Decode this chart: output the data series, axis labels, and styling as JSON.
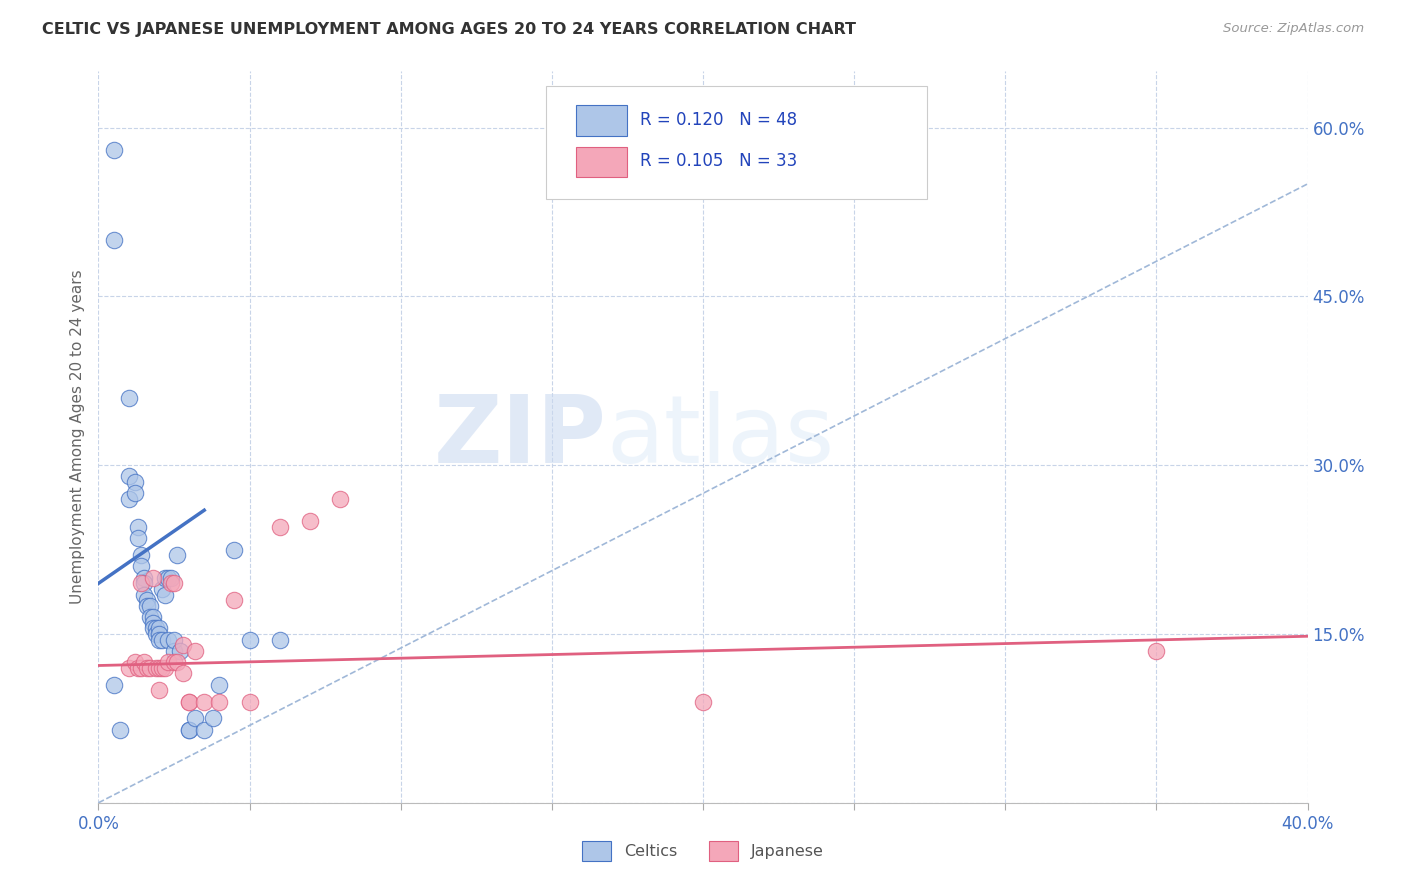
{
  "title": "CELTIC VS JAPANESE UNEMPLOYMENT AMONG AGES 20 TO 24 YEARS CORRELATION CHART",
  "source": "Source: ZipAtlas.com",
  "ylabel": "Unemployment Among Ages 20 to 24 years",
  "xlim": [
    0.0,
    0.4
  ],
  "ylim": [
    0.0,
    0.65
  ],
  "xticks": [
    0.0,
    0.05,
    0.1,
    0.15,
    0.2,
    0.25,
    0.3,
    0.35,
    0.4
  ],
  "right_yticks": [
    0.0,
    0.15,
    0.3,
    0.45,
    0.6
  ],
  "right_yticklabels": [
    "",
    "15.0%",
    "30.0%",
    "45.0%",
    "60.0%"
  ],
  "celtics_r": "0.120",
  "celtics_n": "48",
  "japanese_r": "0.105",
  "japanese_n": "33",
  "celtics_color": "#aec6e8",
  "japanese_color": "#f4a7b9",
  "celtics_line_color": "#4472c4",
  "japanese_line_color": "#e06080",
  "dashed_line_color": "#a0b8d8",
  "background_color": "#ffffff",
  "grid_color": "#c8d4e8",
  "watermark_zip": "ZIP",
  "watermark_atlas": "atlas",
  "celtics_x": [
    0.005,
    0.005,
    0.01,
    0.01,
    0.01,
    0.012,
    0.012,
    0.013,
    0.013,
    0.014,
    0.014,
    0.015,
    0.015,
    0.015,
    0.016,
    0.016,
    0.017,
    0.017,
    0.018,
    0.018,
    0.018,
    0.019,
    0.019,
    0.02,
    0.02,
    0.02,
    0.021,
    0.021,
    0.022,
    0.022,
    0.023,
    0.023,
    0.024,
    0.025,
    0.025,
    0.026,
    0.027,
    0.03,
    0.03,
    0.032,
    0.035,
    0.038,
    0.04,
    0.045,
    0.05,
    0.06,
    0.005,
    0.007
  ],
  "celtics_y": [
    0.58,
    0.5,
    0.36,
    0.29,
    0.27,
    0.285,
    0.275,
    0.245,
    0.235,
    0.22,
    0.21,
    0.2,
    0.195,
    0.185,
    0.18,
    0.175,
    0.175,
    0.165,
    0.165,
    0.16,
    0.155,
    0.155,
    0.15,
    0.155,
    0.15,
    0.145,
    0.145,
    0.19,
    0.185,
    0.2,
    0.145,
    0.2,
    0.2,
    0.135,
    0.145,
    0.22,
    0.135,
    0.065,
    0.065,
    0.075,
    0.065,
    0.075,
    0.105,
    0.225,
    0.145,
    0.145,
    0.105,
    0.065
  ],
  "japanese_x": [
    0.01,
    0.012,
    0.013,
    0.014,
    0.014,
    0.015,
    0.016,
    0.017,
    0.018,
    0.019,
    0.02,
    0.02,
    0.021,
    0.022,
    0.023,
    0.024,
    0.025,
    0.025,
    0.026,
    0.028,
    0.028,
    0.03,
    0.03,
    0.032,
    0.035,
    0.04,
    0.045,
    0.05,
    0.06,
    0.07,
    0.08,
    0.2,
    0.35
  ],
  "japanese_y": [
    0.12,
    0.125,
    0.12,
    0.12,
    0.195,
    0.125,
    0.12,
    0.12,
    0.2,
    0.12,
    0.12,
    0.1,
    0.12,
    0.12,
    0.125,
    0.195,
    0.195,
    0.125,
    0.125,
    0.115,
    0.14,
    0.09,
    0.09,
    0.135,
    0.09,
    0.09,
    0.18,
    0.09,
    0.245,
    0.25,
    0.27,
    0.09,
    0.135
  ],
  "celtics_trend_x0": 0.0,
  "celtics_trend_y0": 0.195,
  "celtics_trend_x1": 0.035,
  "celtics_trend_y1": 0.26,
  "dashed_trend_x0": 0.0,
  "dashed_trend_y0": 0.0,
  "dashed_trend_x1": 0.4,
  "dashed_trend_y1": 0.55,
  "japanese_trend_x0": 0.0,
  "japanese_trend_y0": 0.122,
  "japanese_trend_x1": 0.4,
  "japanese_trend_y1": 0.148
}
